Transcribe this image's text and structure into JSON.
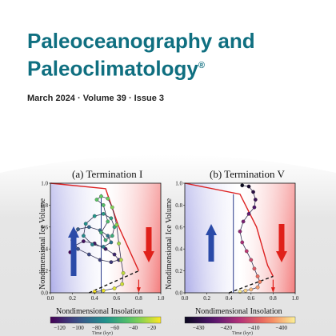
{
  "journal": {
    "title_line1": "Paleoceanography and",
    "title_line2": "Paleoclimatology",
    "registered": "®",
    "issue_line": "March 2024 · Volume 39 · Issue 3"
  },
  "colors": {
    "title": "#0f6f80",
    "cold_side": "#6b6bd6",
    "warm_side": "#ee4444",
    "arrow_up": "#2a4aa8",
    "arrow_down": "#e0201a"
  },
  "chart_data": [
    {
      "type": "scatter",
      "title": "(a) Termination I",
      "xlabel": "Nondimensional Insolation",
      "ylabel": "Nondimensional Ice Volume",
      "xlim": [
        0.0,
        1.0
      ],
      "ylim": [
        0.0,
        1.0
      ],
      "xticks": [
        "0.0",
        "0.2",
        "0.4",
        "0.6",
        "0.8",
        "1.0"
      ],
      "yticks": [
        "0.0",
        "0.2",
        "0.4",
        "0.6",
        "0.8",
        "1.0"
      ],
      "colorbar": {
        "label": "Time (kyr)",
        "ticks": [
          "−120",
          "−100",
          "−80",
          "−60",
          "−40",
          "−20"
        ]
      },
      "threshold_line": {
        "x": [
          0.0,
          0.5,
          0.62,
          0.8
        ],
        "y": [
          1.0,
          0.95,
          0.6,
          0.2
        ]
      },
      "dashed_line": {
        "x": [
          0.35,
          0.8
        ],
        "y": [
          0.0,
          0.2
        ]
      },
      "vertical_line_x": 0.46,
      "trajectory": [
        {
          "x": 0.18,
          "y": 0.37
        },
        {
          "x": 0.22,
          "y": 0.43
        },
        {
          "x": 0.3,
          "y": 0.47
        },
        {
          "x": 0.4,
          "y": 0.45
        },
        {
          "x": 0.5,
          "y": 0.4
        },
        {
          "x": 0.58,
          "y": 0.35
        },
        {
          "x": 0.62,
          "y": 0.3
        },
        {
          "x": 0.55,
          "y": 0.28
        },
        {
          "x": 0.45,
          "y": 0.3
        },
        {
          "x": 0.35,
          "y": 0.35
        },
        {
          "x": 0.25,
          "y": 0.4
        },
        {
          "x": 0.2,
          "y": 0.48
        },
        {
          "x": 0.25,
          "y": 0.58
        },
        {
          "x": 0.35,
          "y": 0.6
        },
        {
          "x": 0.45,
          "y": 0.57
        },
        {
          "x": 0.52,
          "y": 0.52
        },
        {
          "x": 0.55,
          "y": 0.46
        },
        {
          "x": 0.48,
          "y": 0.42
        },
        {
          "x": 0.38,
          "y": 0.44
        },
        {
          "x": 0.3,
          "y": 0.52
        },
        {
          "x": 0.32,
          "y": 0.63
        },
        {
          "x": 0.4,
          "y": 0.7
        },
        {
          "x": 0.48,
          "y": 0.72
        },
        {
          "x": 0.55,
          "y": 0.68
        },
        {
          "x": 0.58,
          "y": 0.6
        },
        {
          "x": 0.56,
          "y": 0.52
        },
        {
          "x": 0.5,
          "y": 0.48
        },
        {
          "x": 0.46,
          "y": 0.55
        },
        {
          "x": 0.52,
          "y": 0.65
        },
        {
          "x": 0.48,
          "y": 0.8
        },
        {
          "x": 0.42,
          "y": 0.85
        },
        {
          "x": 0.46,
          "y": 0.88
        },
        {
          "x": 0.52,
          "y": 0.86
        },
        {
          "x": 0.56,
          "y": 0.78
        },
        {
          "x": 0.6,
          "y": 0.62
        },
        {
          "x": 0.62,
          "y": 0.45
        },
        {
          "x": 0.64,
          "y": 0.3
        },
        {
          "x": 0.66,
          "y": 0.18
        },
        {
          "x": 0.65,
          "y": 0.08
        },
        {
          "x": 0.58,
          "y": 0.04
        },
        {
          "x": 0.48,
          "y": 0.02
        },
        {
          "x": 0.4,
          "y": 0.01
        }
      ]
    },
    {
      "type": "scatter",
      "title": "(b) Termination V",
      "xlabel": "Nondimensional Insolation",
      "ylabel": "Nondimensional Ice Volume",
      "xlim": [
        0.0,
        1.0
      ],
      "ylim": [
        0.0,
        1.0
      ],
      "xticks": [
        "0.0",
        "0.2",
        "0.4",
        "0.6",
        "0.8",
        "1.0"
      ],
      "yticks": [
        "0.0",
        "0.2",
        "0.4",
        "0.6",
        "0.8",
        "1.0"
      ],
      "colorbar": {
        "label": "Time (kyr)",
        "ticks": [
          "−430",
          "−420",
          "−410",
          "−400"
        ]
      },
      "threshold_line": {
        "x": [
          0.0,
          0.5,
          0.65,
          0.75,
          0.8
        ],
        "y": [
          1.0,
          0.9,
          0.6,
          0.25,
          0.15
        ]
      },
      "dashed_line": {
        "x": [
          0.4,
          0.8
        ],
        "y": [
          0.0,
          0.15
        ]
      },
      "vertical_line_x": 0.44,
      "trajectory": [
        {
          "x": 0.52,
          "y": 0.98
        },
        {
          "x": 0.58,
          "y": 0.97
        },
        {
          "x": 0.62,
          "y": 0.92
        },
        {
          "x": 0.64,
          "y": 0.85
        },
        {
          "x": 0.63,
          "y": 0.78
        },
        {
          "x": 0.58,
          "y": 0.72
        },
        {
          "x": 0.53,
          "y": 0.65
        },
        {
          "x": 0.5,
          "y": 0.56
        },
        {
          "x": 0.52,
          "y": 0.46
        },
        {
          "x": 0.56,
          "y": 0.38
        },
        {
          "x": 0.6,
          "y": 0.3
        },
        {
          "x": 0.63,
          "y": 0.22
        },
        {
          "x": 0.66,
          "y": 0.15
        },
        {
          "x": 0.68,
          "y": 0.1
        },
        {
          "x": 0.66,
          "y": 0.05
        },
        {
          "x": 0.6,
          "y": 0.03
        },
        {
          "x": 0.55,
          "y": 0.02
        },
        {
          "x": 0.5,
          "y": 0.01
        }
      ]
    }
  ]
}
